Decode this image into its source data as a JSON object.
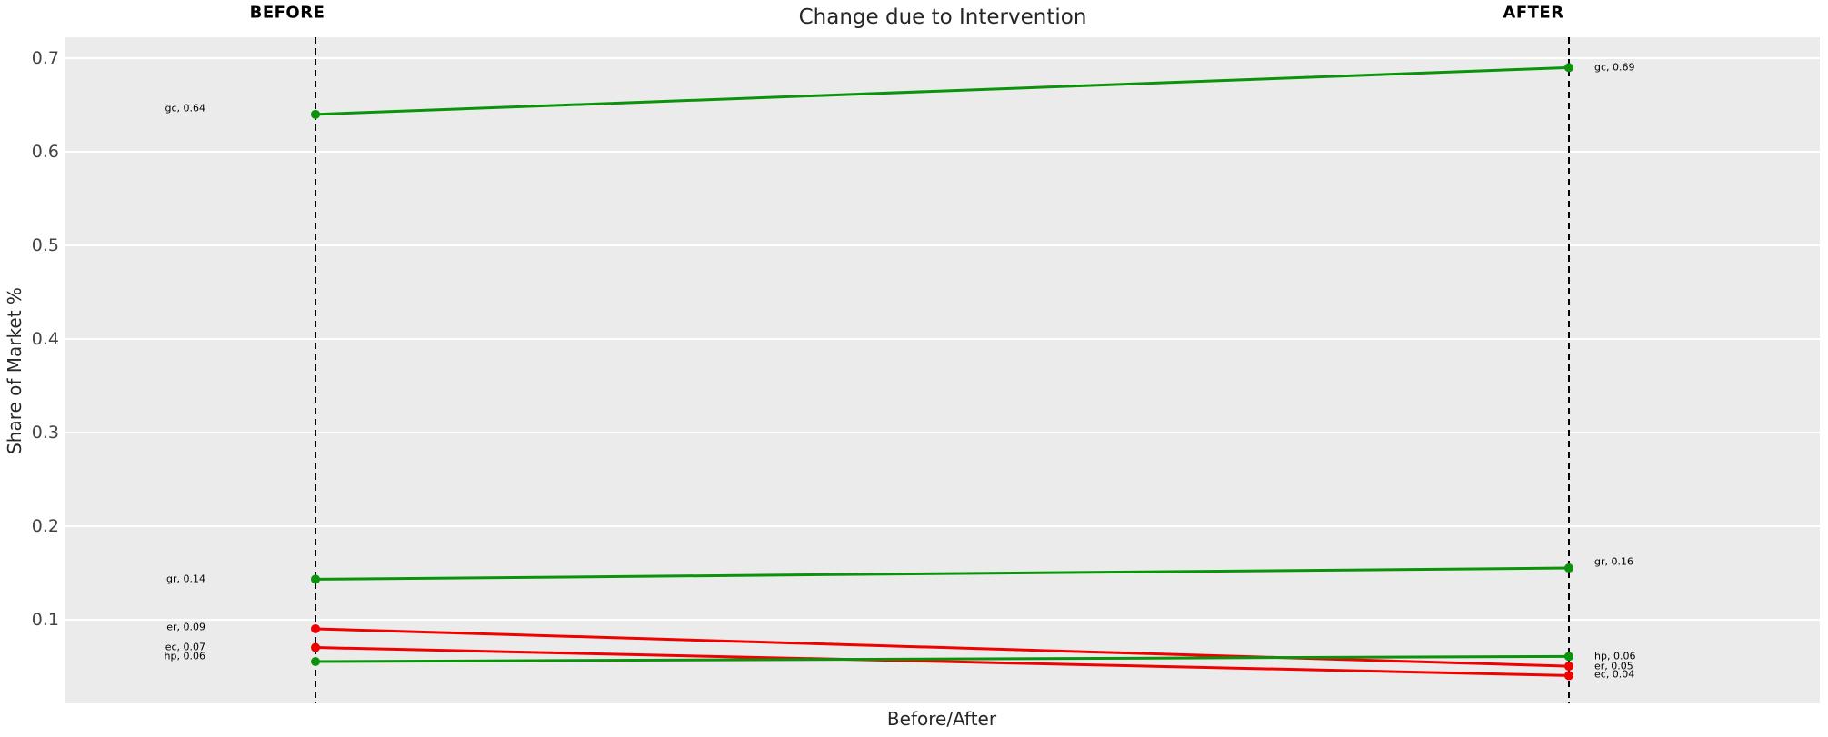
{
  "title": "Change due to Intervention",
  "colors": {
    "background": "#ffffff",
    "panel": "#ebebeb",
    "gridline": "#ffffff",
    "guide_line": "#000000",
    "increase": "#0b930b",
    "decrease": "#f10000",
    "title_text": "#262626",
    "tick_text": "#444444",
    "data_label_text": "#000000"
  },
  "chart_data": {
    "type": "line",
    "subtype": "slopegraph",
    "title": "Change due to Intervention",
    "xlabel": "Before/After",
    "ylabel": "Share of Market %",
    "x_categories": [
      "BEFORE",
      "AFTER"
    ],
    "ytick_labels": [
      "0.1",
      "0.2",
      "0.3",
      "0.4",
      "0.5",
      "0.6",
      "0.7"
    ],
    "ytick_values": [
      0.1,
      0.2,
      0.3,
      0.4,
      0.5,
      0.6,
      0.7
    ],
    "ylim": [
      0.0103,
      0.7224
    ],
    "grid": "horizontal-major-only",
    "guide_line_style": "black dashed vertical at each x category",
    "legend": "none",
    "series": [
      {
        "name": "gc",
        "before": 0.64,
        "after": 0.69,
        "trend": "increase",
        "label_before": "gc, 0.64",
        "label_after": "gc, 0.69",
        "plot_before": 0.64,
        "plot_after": 0.69,
        "dy_before": -7,
        "dy_after": 0
      },
      {
        "name": "gr",
        "before": 0.14,
        "after": 0.16,
        "trend": "increase",
        "label_before": "gr, 0.14",
        "label_after": "gr, 0.16",
        "plot_before": 0.143,
        "plot_after": 0.155,
        "dy_before": 0,
        "dy_after": -7
      },
      {
        "name": "er",
        "before": 0.09,
        "after": 0.05,
        "trend": "decrease",
        "label_before": "er, 0.09",
        "label_after": "er, 0.05",
        "plot_before": 0.09,
        "plot_after": 0.05,
        "dy_before": -2,
        "dy_after": 0
      },
      {
        "name": "ec",
        "before": 0.07,
        "after": 0.04,
        "trend": "decrease",
        "label_before": "ec, 0.07",
        "label_after": "ec, 0.04",
        "plot_before": 0.07,
        "plot_after": 0.04,
        "dy_before": -1,
        "dy_after": -1
      },
      {
        "name": "hp",
        "before": 0.06,
        "after": 0.06,
        "trend": "increase",
        "label_before": "hp, 0.06",
        "label_after": "hp, 0.06",
        "plot_before": 0.055,
        "plot_after": 0.0605,
        "dy_before": -6,
        "dy_after": 0
      }
    ]
  }
}
